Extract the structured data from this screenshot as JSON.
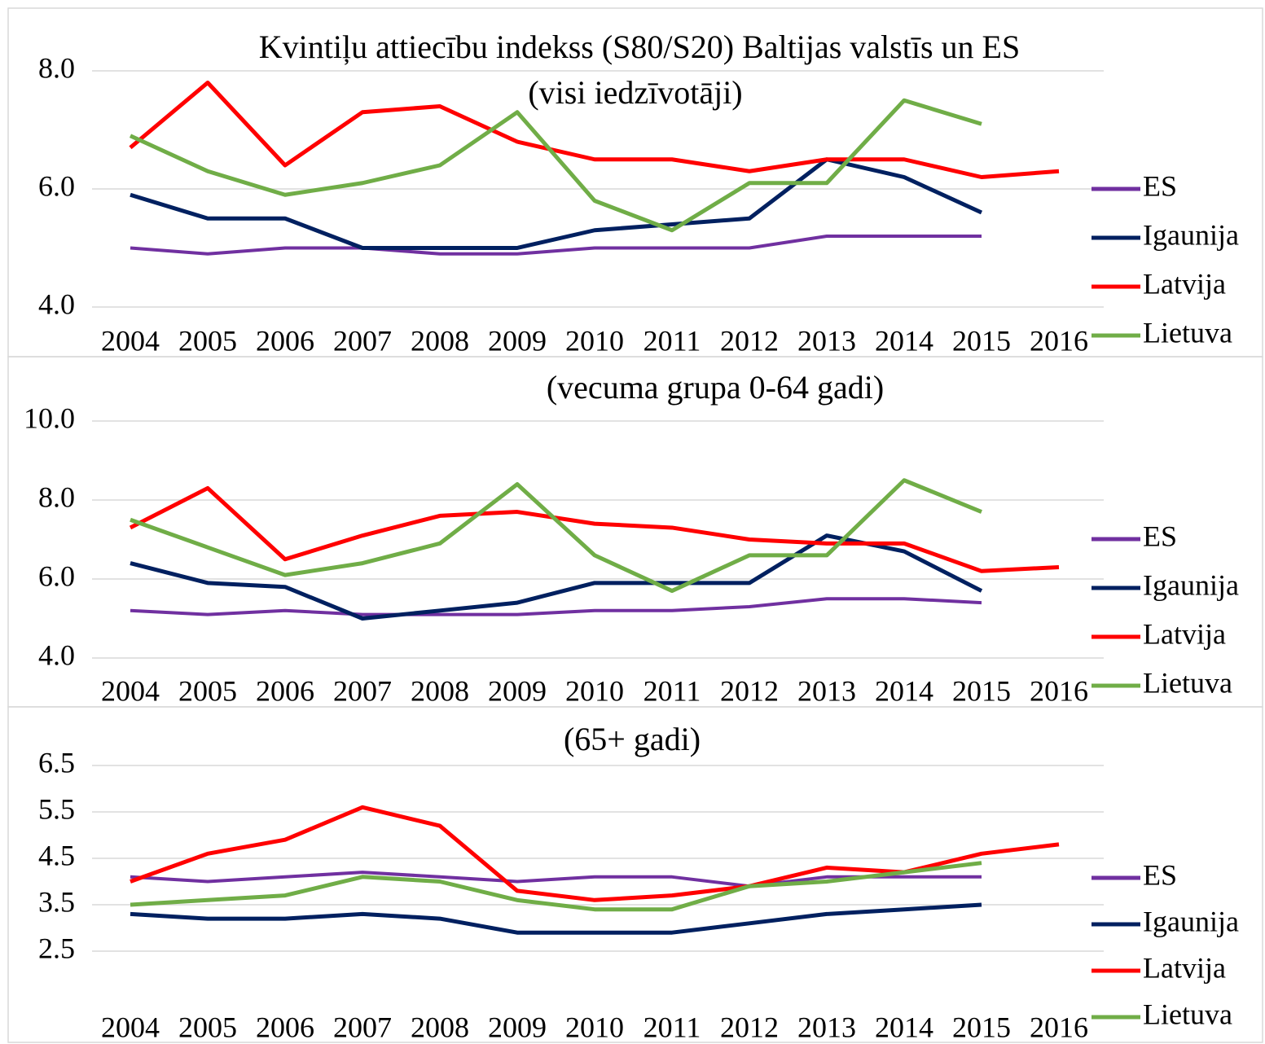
{
  "chart_data": [
    {
      "type": "line",
      "title": "Kvintiļu attiecību indekss (S80/S20) Baltijas valstīs un ES",
      "subtitle": "(visi iedzīvotāji)",
      "categories": [
        "2004",
        "2005",
        "2006",
        "2007",
        "2008",
        "2009",
        "2010",
        "2011",
        "2012",
        "2013",
        "2014",
        "2015",
        "2016"
      ],
      "series": [
        {
          "name": "ES",
          "color": "#7030a0",
          "values": [
            5.0,
            4.9,
            5.0,
            5.0,
            4.9,
            4.9,
            5.0,
            5.0,
            5.0,
            5.2,
            5.2,
            5.2,
            null
          ]
        },
        {
          "name": "Igaunija",
          "color": "#002060",
          "values": [
            5.9,
            5.5,
            5.5,
            5.0,
            5.0,
            5.0,
            5.3,
            5.4,
            5.5,
            6.5,
            6.2,
            5.6,
            null
          ]
        },
        {
          "name": "Latvija",
          "color": "#ff0000",
          "values": [
            6.7,
            7.8,
            6.4,
            7.3,
            7.4,
            6.8,
            6.5,
            6.5,
            6.3,
            6.5,
            6.5,
            6.2,
            6.3
          ]
        },
        {
          "name": "Lietuva",
          "color": "#70ad47",
          "values": [
            6.9,
            6.3,
            5.9,
            6.1,
            6.4,
            7.3,
            5.8,
            5.3,
            6.1,
            6.1,
            7.5,
            7.1,
            null
          ]
        }
      ],
      "ylim": [
        4,
        8
      ],
      "yticks": [
        {
          "value": 4,
          "label": "4.0"
        },
        {
          "value": 6,
          "label": "6.0"
        },
        {
          "value": 8,
          "label": "8.0"
        }
      ],
      "grid": true,
      "legend": "right"
    },
    {
      "type": "line",
      "title": "(vecuma grupa 0-64 gadi)",
      "categories": [
        "2004",
        "2005",
        "2006",
        "2007",
        "2008",
        "2009",
        "2010",
        "2011",
        "2012",
        "2013",
        "2014",
        "2015",
        "2016"
      ],
      "series": [
        {
          "name": "ES",
          "color": "#7030a0",
          "values": [
            5.2,
            5.1,
            5.2,
            5.1,
            5.1,
            5.1,
            5.2,
            5.2,
            5.3,
            5.5,
            5.5,
            5.4,
            null
          ]
        },
        {
          "name": "Igaunija",
          "color": "#002060",
          "values": [
            6.4,
            5.9,
            5.8,
            5.0,
            5.2,
            5.4,
            5.9,
            5.9,
            5.9,
            7.1,
            6.7,
            5.7,
            null
          ]
        },
        {
          "name": "Latvija",
          "color": "#ff0000",
          "values": [
            7.3,
            8.3,
            6.5,
            7.1,
            7.6,
            7.7,
            7.4,
            7.3,
            7.0,
            6.9,
            6.9,
            6.2,
            6.3
          ]
        },
        {
          "name": "Lietuva",
          "color": "#70ad47",
          "values": [
            7.5,
            6.8,
            6.1,
            6.4,
            6.9,
            8.4,
            6.6,
            5.7,
            6.6,
            6.6,
            8.5,
            7.7,
            null
          ]
        }
      ],
      "ylim": [
        4,
        10
      ],
      "yticks": [
        {
          "value": 4,
          "label": "4.0"
        },
        {
          "value": 6,
          "label": "6.0"
        },
        {
          "value": 8,
          "label": "8.0"
        },
        {
          "value": 10,
          "label": "10.0"
        }
      ],
      "grid": true,
      "legend": "right"
    },
    {
      "type": "line",
      "title": "(65+ gadi)",
      "categories": [
        "2004",
        "2005",
        "2006",
        "2007",
        "2008",
        "2009",
        "2010",
        "2011",
        "2012",
        "2013",
        "2014",
        "2015",
        "2016"
      ],
      "series": [
        {
          "name": "ES",
          "color": "#7030a0",
          "values": [
            4.1,
            4.0,
            4.1,
            4.2,
            4.1,
            4.0,
            4.1,
            4.1,
            3.9,
            4.1,
            4.1,
            4.1,
            null
          ]
        },
        {
          "name": "Igaunija",
          "color": "#002060",
          "values": [
            3.3,
            3.2,
            3.2,
            3.3,
            3.2,
            2.9,
            2.9,
            2.9,
            3.1,
            3.3,
            3.4,
            3.5,
            null
          ]
        },
        {
          "name": "Latvija",
          "color": "#ff0000",
          "values": [
            4.0,
            4.6,
            4.9,
            5.6,
            5.2,
            3.8,
            3.6,
            3.7,
            3.9,
            4.3,
            4.2,
            4.6,
            4.8
          ]
        },
        {
          "name": "Lietuva",
          "color": "#70ad47",
          "values": [
            3.5,
            3.6,
            3.7,
            4.1,
            4.0,
            3.6,
            3.4,
            3.4,
            3.9,
            4.0,
            4.2,
            4.4,
            null
          ]
        }
      ],
      "ylim": [
        2.5,
        6.5
      ],
      "yticks": [
        2.5,
        3.5,
        4.5,
        5.5,
        6.5
      ],
      "grid": true,
      "legend": "right"
    }
  ]
}
